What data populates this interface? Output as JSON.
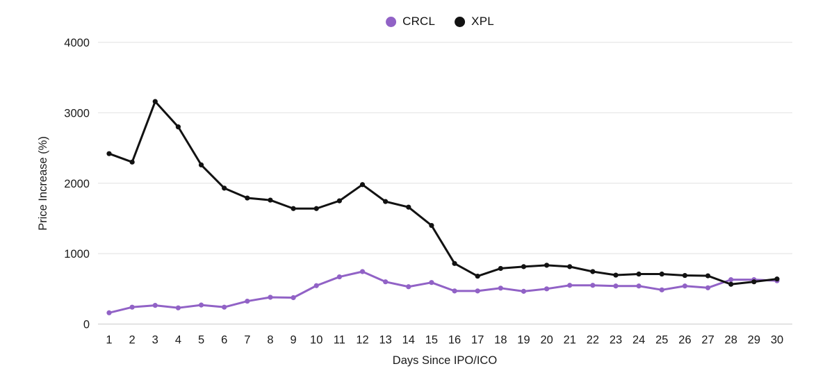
{
  "chart_data": {
    "type": "line",
    "title": "",
    "xlabel": "Days Since IPO/ICO",
    "ylabel": "Price Increase (%)",
    "x": [
      1,
      2,
      3,
      4,
      5,
      6,
      7,
      8,
      9,
      10,
      11,
      12,
      13,
      14,
      15,
      16,
      17,
      18,
      19,
      20,
      21,
      22,
      23,
      24,
      25,
      26,
      27,
      28,
      29,
      30
    ],
    "ylim": [
      0,
      4000
    ],
    "y_ticks": [
      0,
      1000,
      2000,
      3000,
      4000
    ],
    "grid": true,
    "legend_position": "top-center",
    "series": [
      {
        "name": "CRCL",
        "color": "#9162c6",
        "marker": "circle",
        "values": [
          160,
          240,
          265,
          230,
          270,
          240,
          325,
          380,
          375,
          545,
          670,
          745,
          600,
          530,
          590,
          470,
          470,
          510,
          465,
          500,
          550,
          550,
          540,
          540,
          485,
          540,
          515,
          630,
          630,
          615
        ]
      },
      {
        "name": "XPL",
        "color": "#121212",
        "marker": "circle",
        "values": [
          2420,
          2300,
          3160,
          2800,
          2260,
          1930,
          1790,
          1760,
          1640,
          1640,
          1750,
          1980,
          1740,
          1660,
          1400,
          860,
          680,
          790,
          815,
          835,
          815,
          745,
          695,
          710,
          710,
          690,
          685,
          565,
          600,
          640
        ]
      }
    ]
  },
  "colors": {
    "grid": "#e7e7e7",
    "axis_line": "#d2d2d2",
    "text": "#1a1a1a",
    "background": "#ffffff"
  }
}
